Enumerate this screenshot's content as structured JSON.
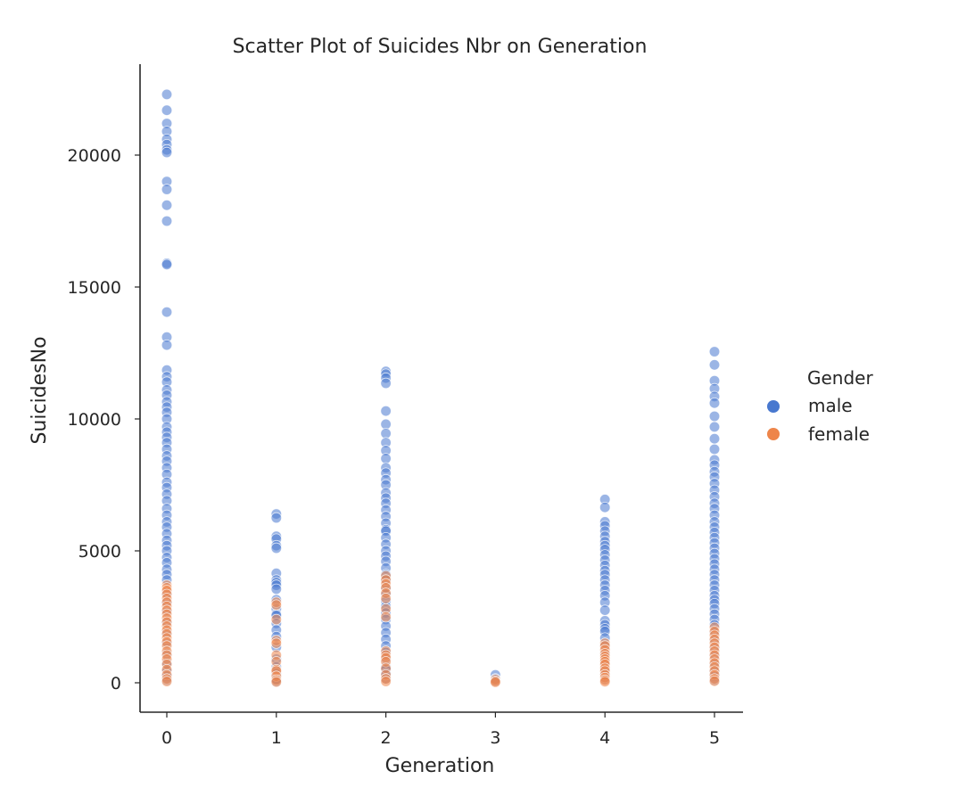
{
  "chart_data": {
    "type": "scatter",
    "title": "Scatter Plot of Suicides Nbr on Generation",
    "xlabel": "Generation",
    "ylabel": "SuicidesNo",
    "x_ticks": [
      "0",
      "1",
      "2",
      "3",
      "4",
      "5"
    ],
    "y_ticks": [
      "0",
      "5000",
      "10000",
      "15000",
      "20000"
    ],
    "xlim": [
      -0.25,
      5.25
    ],
    "ylim": [
      -1000,
      23000
    ],
    "grid": false,
    "legend": {
      "title": "Gender",
      "placement": "outside-right"
    },
    "series": [
      {
        "name": "male",
        "color": "#4878cf",
        "points": [
          [
            0,
            22300
          ],
          [
            0,
            21700
          ],
          [
            0,
            21200
          ],
          [
            0,
            20900
          ],
          [
            0,
            20600
          ],
          [
            0,
            20400
          ],
          [
            0,
            20200
          ],
          [
            0,
            20100
          ],
          [
            0,
            19000
          ],
          [
            0,
            18700
          ],
          [
            0,
            18100
          ],
          [
            0,
            17500
          ],
          [
            0,
            15900
          ],
          [
            0,
            15850
          ],
          [
            0,
            14050
          ],
          [
            0,
            13100
          ],
          [
            0,
            12800
          ],
          [
            0,
            11850
          ],
          [
            0,
            11600
          ],
          [
            0,
            11400
          ],
          [
            0,
            11100
          ],
          [
            0,
            10900
          ],
          [
            0,
            10650
          ],
          [
            0,
            10450
          ],
          [
            0,
            10250
          ],
          [
            0,
            10000
          ],
          [
            0,
            9700
          ],
          [
            0,
            9500
          ],
          [
            0,
            9300
          ],
          [
            0,
            9100
          ],
          [
            0,
            8850
          ],
          [
            0,
            8600
          ],
          [
            0,
            8400
          ],
          [
            0,
            8150
          ],
          [
            0,
            7900
          ],
          [
            0,
            7600
          ],
          [
            0,
            7400
          ],
          [
            0,
            7150
          ],
          [
            0,
            6900
          ],
          [
            0,
            6600
          ],
          [
            0,
            6350
          ],
          [
            0,
            6100
          ],
          [
            0,
            5900
          ],
          [
            0,
            5650
          ],
          [
            0,
            5400
          ],
          [
            0,
            5200
          ],
          [
            0,
            5000
          ],
          [
            0,
            4750
          ],
          [
            0,
            4550
          ],
          [
            0,
            4300
          ],
          [
            0,
            4100
          ],
          [
            0,
            3900
          ],
          [
            0,
            3400
          ],
          [
            0,
            3050
          ],
          [
            0,
            2700
          ],
          [
            0,
            2300
          ],
          [
            0,
            1900
          ],
          [
            0,
            1500
          ],
          [
            0,
            1100
          ],
          [
            0,
            750
          ],
          [
            0,
            450
          ],
          [
            0,
            250
          ],
          [
            0,
            100
          ],
          [
            1,
            6400
          ],
          [
            1,
            6250
          ],
          [
            1,
            5550
          ],
          [
            1,
            5450
          ],
          [
            1,
            5200
          ],
          [
            1,
            5100
          ],
          [
            1,
            4150
          ],
          [
            1,
            3900
          ],
          [
            1,
            3800
          ],
          [
            1,
            3700
          ],
          [
            1,
            3550
          ],
          [
            1,
            3150
          ],
          [
            1,
            2800
          ],
          [
            1,
            2600
          ],
          [
            1,
            2550
          ],
          [
            1,
            2250
          ],
          [
            1,
            2000
          ],
          [
            1,
            1750
          ],
          [
            1,
            1350
          ],
          [
            1,
            900
          ],
          [
            1,
            600
          ],
          [
            1,
            350
          ],
          [
            1,
            150
          ],
          [
            1,
            50
          ],
          [
            2,
            11800
          ],
          [
            2,
            11700
          ],
          [
            2,
            11550
          ],
          [
            2,
            11350
          ],
          [
            2,
            10300
          ],
          [
            2,
            9800
          ],
          [
            2,
            9450
          ],
          [
            2,
            9100
          ],
          [
            2,
            8800
          ],
          [
            2,
            8500
          ],
          [
            2,
            8150
          ],
          [
            2,
            7950
          ],
          [
            2,
            7700
          ],
          [
            2,
            7500
          ],
          [
            2,
            7200
          ],
          [
            2,
            7000
          ],
          [
            2,
            6800
          ],
          [
            2,
            6550
          ],
          [
            2,
            6300
          ],
          [
            2,
            6050
          ],
          [
            2,
            5800
          ],
          [
            2,
            5750
          ],
          [
            2,
            5500
          ],
          [
            2,
            5250
          ],
          [
            2,
            5000
          ],
          [
            2,
            4800
          ],
          [
            2,
            4600
          ],
          [
            2,
            4350
          ],
          [
            2,
            4100
          ],
          [
            2,
            3900
          ],
          [
            2,
            3600
          ],
          [
            2,
            3350
          ],
          [
            2,
            3100
          ],
          [
            2,
            2900
          ],
          [
            2,
            2650
          ],
          [
            2,
            2400
          ],
          [
            2,
            2150
          ],
          [
            2,
            1900
          ],
          [
            2,
            1650
          ],
          [
            2,
            1400
          ],
          [
            2,
            1150
          ],
          [
            2,
            900
          ],
          [
            2,
            600
          ],
          [
            2,
            500
          ],
          [
            2,
            350
          ],
          [
            2,
            150
          ],
          [
            3,
            300
          ],
          [
            3,
            150
          ],
          [
            3,
            60
          ],
          [
            4,
            6950
          ],
          [
            4,
            6650
          ],
          [
            4,
            6100
          ],
          [
            4,
            5950
          ],
          [
            4,
            5750
          ],
          [
            4,
            5550
          ],
          [
            4,
            5350
          ],
          [
            4,
            5200
          ],
          [
            4,
            5050
          ],
          [
            4,
            4850
          ],
          [
            4,
            4650
          ],
          [
            4,
            4450
          ],
          [
            4,
            4250
          ],
          [
            4,
            4100
          ],
          [
            4,
            3900
          ],
          [
            4,
            3700
          ],
          [
            4,
            3500
          ],
          [
            4,
            3300
          ],
          [
            4,
            3050
          ],
          [
            4,
            2750
          ],
          [
            4,
            2350
          ],
          [
            4,
            2200
          ],
          [
            4,
            2050
          ],
          [
            4,
            1950
          ],
          [
            4,
            1700
          ],
          [
            4,
            1400
          ],
          [
            4,
            1100
          ],
          [
            4,
            800
          ],
          [
            4,
            500
          ],
          [
            4,
            300
          ],
          [
            4,
            150
          ],
          [
            5,
            12550
          ],
          [
            5,
            12050
          ],
          [
            5,
            11450
          ],
          [
            5,
            11150
          ],
          [
            5,
            10850
          ],
          [
            5,
            10600
          ],
          [
            5,
            10100
          ],
          [
            5,
            9700
          ],
          [
            5,
            9250
          ],
          [
            5,
            8850
          ],
          [
            5,
            8450
          ],
          [
            5,
            8250
          ],
          [
            5,
            8000
          ],
          [
            5,
            7800
          ],
          [
            5,
            7550
          ],
          [
            5,
            7300
          ],
          [
            5,
            7050
          ],
          [
            5,
            6800
          ],
          [
            5,
            6600
          ],
          [
            5,
            6350
          ],
          [
            5,
            6100
          ],
          [
            5,
            5900
          ],
          [
            5,
            5700
          ],
          [
            5,
            5500
          ],
          [
            5,
            5300
          ],
          [
            5,
            5100
          ],
          [
            5,
            4900
          ],
          [
            5,
            4700
          ],
          [
            5,
            4500
          ],
          [
            5,
            4300
          ],
          [
            5,
            4100
          ],
          [
            5,
            3900
          ],
          [
            5,
            3700
          ],
          [
            5,
            3500
          ],
          [
            5,
            3300
          ],
          [
            5,
            3150
          ],
          [
            5,
            3000
          ],
          [
            5,
            2800
          ],
          [
            5,
            2600
          ],
          [
            5,
            2400
          ],
          [
            5,
            2200
          ],
          [
            5,
            1900
          ],
          [
            5,
            1600
          ],
          [
            5,
            1300
          ],
          [
            5,
            1000
          ],
          [
            5,
            700
          ],
          [
            5,
            450
          ],
          [
            5,
            250
          ],
          [
            5,
            100
          ]
        ]
      },
      {
        "name": "female",
        "color": "#ee854a",
        "points": [
          [
            0,
            3700
          ],
          [
            0,
            3600
          ],
          [
            0,
            3500
          ],
          [
            0,
            3350
          ],
          [
            0,
            3200
          ],
          [
            0,
            3050
          ],
          [
            0,
            2900
          ],
          [
            0,
            2750
          ],
          [
            0,
            2600
          ],
          [
            0,
            2450
          ],
          [
            0,
            2300
          ],
          [
            0,
            2150
          ],
          [
            0,
            2000
          ],
          [
            0,
            1850
          ],
          [
            0,
            1700
          ],
          [
            0,
            1550
          ],
          [
            0,
            1400
          ],
          [
            0,
            1200
          ],
          [
            0,
            1050
          ],
          [
            0,
            900
          ],
          [
            0,
            700
          ],
          [
            0,
            500
          ],
          [
            0,
            300
          ],
          [
            0,
            150
          ],
          [
            0,
            50
          ],
          [
            1,
            3050
          ],
          [
            1,
            2950
          ],
          [
            1,
            2400
          ],
          [
            1,
            1600
          ],
          [
            1,
            1500
          ],
          [
            1,
            1050
          ],
          [
            1,
            800
          ],
          [
            1,
            500
          ],
          [
            1,
            450
          ],
          [
            1,
            250
          ],
          [
            1,
            100
          ],
          [
            1,
            30
          ],
          [
            2,
            4050
          ],
          [
            2,
            3900
          ],
          [
            2,
            3750
          ],
          [
            2,
            3600
          ],
          [
            2,
            3400
          ],
          [
            2,
            3200
          ],
          [
            2,
            2800
          ],
          [
            2,
            2500
          ],
          [
            2,
            1200
          ],
          [
            2,
            1050
          ],
          [
            2,
            950
          ],
          [
            2,
            800
          ],
          [
            2,
            550
          ],
          [
            2,
            300
          ],
          [
            2,
            150
          ],
          [
            2,
            50
          ],
          [
            3,
            120
          ],
          [
            3,
            60
          ],
          [
            3,
            20
          ],
          [
            4,
            1500
          ],
          [
            4,
            1400
          ],
          [
            4,
            1250
          ],
          [
            4,
            1100
          ],
          [
            4,
            1000
          ],
          [
            4,
            900
          ],
          [
            4,
            800
          ],
          [
            4,
            700
          ],
          [
            4,
            550
          ],
          [
            4,
            450
          ],
          [
            4,
            300
          ],
          [
            4,
            200
          ],
          [
            4,
            100
          ],
          [
            4,
            40
          ],
          [
            5,
            2100
          ],
          [
            5,
            1950
          ],
          [
            5,
            1800
          ],
          [
            5,
            1650
          ],
          [
            5,
            1500
          ],
          [
            5,
            1350
          ],
          [
            5,
            1200
          ],
          [
            5,
            1050
          ],
          [
            5,
            900
          ],
          [
            5,
            750
          ],
          [
            5,
            600
          ],
          [
            5,
            450
          ],
          [
            5,
            300
          ],
          [
            5,
            150
          ],
          [
            5,
            60
          ]
        ]
      }
    ]
  }
}
